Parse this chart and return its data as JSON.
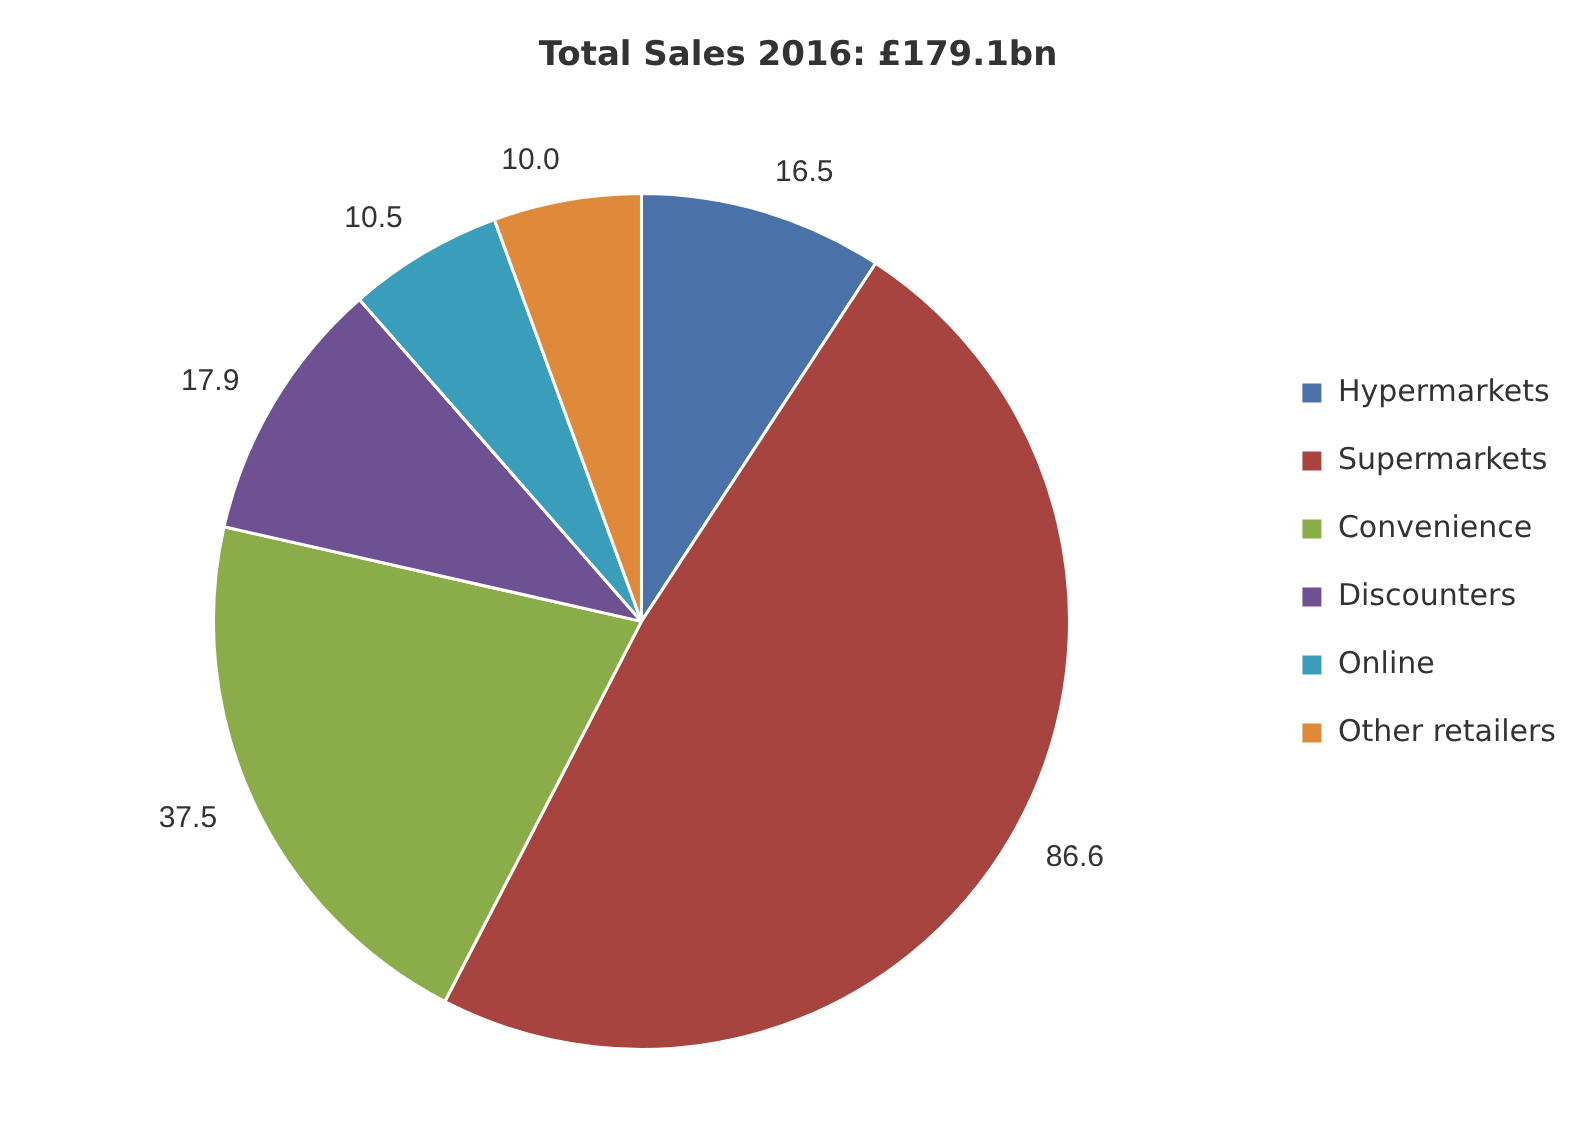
{
  "chart_data": {
    "type": "pie",
    "title": "Total Sales 2016: £179.1bn",
    "categories": [
      "Hypermarkets",
      "Supermarkets",
      "Convenience",
      "Discounters",
      "Online",
      "Other retailers"
    ],
    "values": [
      16.5,
      86.6,
      37.5,
      17.9,
      10.5,
      10.0
    ],
    "value_labels": [
      "16.5",
      "86.6",
      "37.5",
      "17.9",
      "10.5",
      "10.0"
    ],
    "colors": [
      "#4a72a8",
      "#a84440",
      "#8aad4a",
      "#6e5192",
      "#3a9dba",
      "#de8a3a"
    ],
    "legend": "right"
  }
}
